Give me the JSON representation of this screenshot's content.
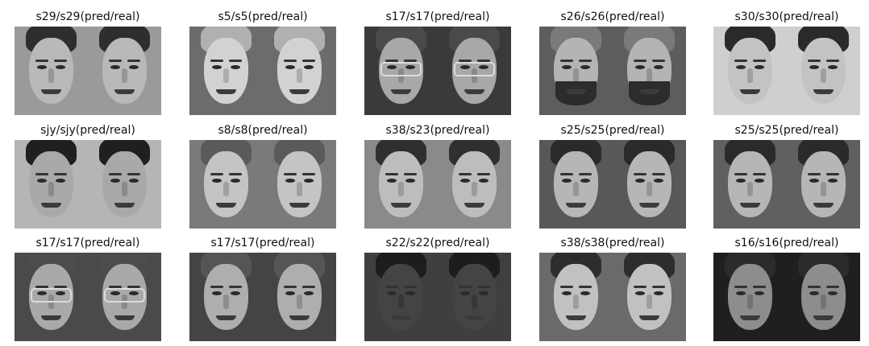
{
  "grid": {
    "items": [
      {
        "label": "s29/s29(pred/real)",
        "bg": "#9a9a9a",
        "skin": "#b9b9b9",
        "hair": "#2e2e2e",
        "glasses": false,
        "beard": false
      },
      {
        "label": "s5/s5(pred/real)",
        "bg": "#6c6c6c",
        "skin": "#d2d2d2",
        "hair": "#b0b0b0",
        "glasses": false,
        "beard": false
      },
      {
        "label": "s17/s17(pred/real)",
        "bg": "#3a3a3a",
        "skin": "#a8a8a8",
        "hair": "#4a4a4a",
        "glasses": true,
        "beard": false
      },
      {
        "label": "s26/s26(pred/real)",
        "bg": "#5d5d5d",
        "skin": "#b4b4b4",
        "hair": "#7a7a7a",
        "glasses": false,
        "beard": true
      },
      {
        "label": "s30/s30(pred/real)",
        "bg": "#cfcfcf",
        "skin": "#c3c3c3",
        "hair": "#2a2a2a",
        "glasses": false,
        "beard": false
      },
      {
        "label": "sjy/sjy(pred/real)",
        "bg": "#b5b5b5",
        "skin": "#a9a9a9",
        "hair": "#1f1f1f",
        "glasses": false,
        "beard": false
      },
      {
        "label": "s8/s8(pred/real)",
        "bg": "#7a7a7a",
        "skin": "#c4c4c4",
        "hair": "#5a5a5a",
        "glasses": false,
        "beard": false
      },
      {
        "label": "s38/s23(pred/real)",
        "bg": "#8a8a8a",
        "skin": "#bdbdbd",
        "hair": "#2f2f2f",
        "glasses": false,
        "beard": false
      },
      {
        "label": "s25/s25(pred/real)",
        "bg": "#585858",
        "skin": "#b6b6b6",
        "hair": "#2a2a2a",
        "glasses": false,
        "beard": false
      },
      {
        "label": "s25/s25(pred/real)",
        "bg": "#606060",
        "skin": "#b6b6b6",
        "hair": "#2a2a2a",
        "glasses": false,
        "beard": false
      },
      {
        "label": "s17/s17(pred/real)",
        "bg": "#4a4a4a",
        "skin": "#a9a9a9",
        "hair": "#4c4c4c",
        "glasses": true,
        "beard": false
      },
      {
        "label": "s17/s17(pred/real)",
        "bg": "#444444",
        "skin": "#aeaeae",
        "hair": "#555555",
        "glasses": false,
        "beard": false
      },
      {
        "label": "s22/s22(pred/real)",
        "bg": "#3f3f3f",
        "skin": "#444444",
        "hair": "#1d1d1d",
        "glasses": false,
        "beard": false
      },
      {
        "label": "s38/s38(pred/real)",
        "bg": "#6a6a6a",
        "skin": "#c1c1c1",
        "hair": "#2d2d2d",
        "glasses": false,
        "beard": false
      },
      {
        "label": "s16/s16(pred/real)",
        "bg": "#1f1f1f",
        "skin": "#8d8d8d",
        "hair": "#2b2b2b",
        "glasses": false,
        "beard": false
      }
    ]
  }
}
